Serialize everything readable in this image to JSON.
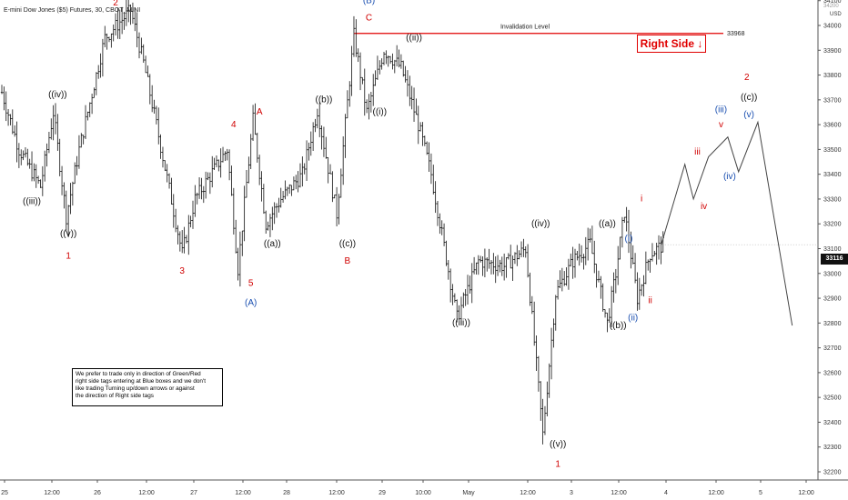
{
  "header": {
    "title": "E-mini Dow Jones ($5) Futures, 30, CBOT_MINI"
  },
  "currency": "USD",
  "current_price": "33116",
  "right_side_box": {
    "label": "Right Side",
    "arrow": "down-arrow",
    "color": "#e00000"
  },
  "note_lines": [
    "We prefer to trade only in direction of Green/Red",
    "right side tags entering at Blue boxes and we don't",
    "like trading Turning up/down arrows or against",
    "the direction of Right side tags"
  ],
  "chart_data": {
    "type": "ohlc-bars",
    "y_ticks": [
      32200,
      32300,
      32400,
      32500,
      32600,
      32700,
      32800,
      32900,
      33000,
      33100,
      33200,
      33300,
      33400,
      33500,
      33600,
      33700,
      33800,
      33900,
      34000,
      34100
    ],
    "y_top_tick": "34200",
    "x_tick_labels": [
      "25",
      "12:00",
      "26",
      "12:00",
      "27",
      "12:00",
      "28",
      "12:00",
      "29",
      "10:00",
      "May",
      "12:00",
      "3",
      "12:00",
      "4",
      "12:00",
      "5",
      "12:00"
    ],
    "invalidation": {
      "label": "Invalidation Level",
      "value": 33968
    },
    "price_path_key_points": [
      {
        "t": 0,
        "v": 33730
      },
      {
        "t": 8,
        "v": 33500
      },
      {
        "t": 18,
        "v": 33350
      },
      {
        "t": 24,
        "v": 33650
      },
      {
        "t": 30,
        "v": 33230
      },
      {
        "t": 36,
        "v": 33500
      },
      {
        "t": 48,
        "v": 33950
      },
      {
        "t": 60,
        "v": 34060
      },
      {
        "t": 66,
        "v": 33850
      },
      {
        "t": 72,
        "v": 33600
      },
      {
        "t": 84,
        "v": 33080
      },
      {
        "t": 90,
        "v": 33300
      },
      {
        "t": 96,
        "v": 33380
      },
      {
        "t": 105,
        "v": 33500
      },
      {
        "t": 110,
        "v": 33020
      },
      {
        "t": 117,
        "v": 33620
      },
      {
        "t": 123,
        "v": 33200
      },
      {
        "t": 130,
        "v": 33300
      },
      {
        "t": 140,
        "v": 33400
      },
      {
        "t": 147,
        "v": 33660
      },
      {
        "t": 156,
        "v": 33240
      },
      {
        "t": 164,
        "v": 33960
      },
      {
        "t": 170,
        "v": 33650
      },
      {
        "t": 178,
        "v": 33900
      },
      {
        "t": 186,
        "v": 33830
      },
      {
        "t": 194,
        "v": 33600
      },
      {
        "t": 200,
        "v": 33400
      },
      {
        "t": 212,
        "v": 32820
      },
      {
        "t": 222,
        "v": 33050
      },
      {
        "t": 234,
        "v": 33030
      },
      {
        "t": 244,
        "v": 33100
      },
      {
        "t": 252,
        "v": 32350
      },
      {
        "t": 258,
        "v": 32920
      },
      {
        "t": 266,
        "v": 33050
      },
      {
        "t": 274,
        "v": 33120
      },
      {
        "t": 282,
        "v": 32800
      },
      {
        "t": 286,
        "v": 33000
      },
      {
        "t": 290,
        "v": 33250
      },
      {
        "t": 296,
        "v": 32900
      },
      {
        "t": 302,
        "v": 33080
      },
      {
        "t": 308,
        "v": 33116
      }
    ],
    "projection": [
      {
        "t": 308,
        "v": 33116
      },
      {
        "t": 319,
        "v": 33440
      },
      {
        "t": 323,
        "v": 33300
      },
      {
        "t": 330,
        "v": 33470
      },
      {
        "t": 339,
        "v": 33550
      },
      {
        "t": 344,
        "v": 33410
      },
      {
        "t": 353,
        "v": 33610
      },
      {
        "t": 369,
        "v": 32790
      }
    ],
    "wave_labels": [
      {
        "text": "2",
        "t": 53,
        "v": 34080,
        "color": "#d00000"
      },
      {
        "text": "((iv))",
        "t": 26,
        "v": 33710,
        "color": "#111"
      },
      {
        "text": "((iii))",
        "t": 14,
        "v": 33280,
        "color": "#111"
      },
      {
        "text": "((v))",
        "t": 31,
        "v": 33150,
        "color": "#111"
      },
      {
        "text": "1",
        "t": 31,
        "v": 33060,
        "color": "#d00000"
      },
      {
        "text": "3",
        "t": 84,
        "v": 33000,
        "color": "#d00000"
      },
      {
        "text": "4",
        "t": 108,
        "v": 33590,
        "color": "#d00000"
      },
      {
        "text": "A",
        "t": 120,
        "v": 33640,
        "color": "#d00000"
      },
      {
        "text": "5",
        "t": 116,
        "v": 32950,
        "color": "#d00000"
      },
      {
        "text": "(A)",
        "t": 116,
        "v": 32870,
        "color": "#1a4fb0"
      },
      {
        "text": "((a))",
        "t": 126,
        "v": 33110,
        "color": "#111"
      },
      {
        "text": "((b))",
        "t": 150,
        "v": 33690,
        "color": "#111"
      },
      {
        "text": "((c))",
        "t": 161,
        "v": 33110,
        "color": "#111"
      },
      {
        "text": "B",
        "t": 161,
        "v": 33040,
        "color": "#d00000"
      },
      {
        "text": "(B)",
        "t": 171,
        "v": 34090,
        "color": "#1a4fb0"
      },
      {
        "text": "C",
        "t": 171,
        "v": 34020,
        "color": "#d00000"
      },
      {
        "text": "((ii))",
        "t": 192,
        "v": 33940,
        "color": "#111"
      },
      {
        "text": "((i))",
        "t": 176,
        "v": 33640,
        "color": "#111"
      },
      {
        "text": "((iii))",
        "t": 214,
        "v": 32790,
        "color": "#111"
      },
      {
        "text": "((iv))",
        "t": 251,
        "v": 33190,
        "color": "#111"
      },
      {
        "text": "((v))",
        "t": 259,
        "v": 32300,
        "color": "#111"
      },
      {
        "text": "1",
        "t": 259,
        "v": 32220,
        "color": "#d00000"
      },
      {
        "text": "((a))",
        "t": 282,
        "v": 33190,
        "color": "#111"
      },
      {
        "text": "(i)",
        "t": 292,
        "v": 33130,
        "color": "#1a4fb0"
      },
      {
        "text": "((b))",
        "t": 287,
        "v": 32780,
        "color": "#111"
      },
      {
        "text": "(ii)",
        "t": 294,
        "v": 32810,
        "color": "#1a4fb0"
      },
      {
        "text": "i",
        "t": 298,
        "v": 33290,
        "color": "#d00000"
      },
      {
        "text": "ii",
        "t": 302,
        "v": 32880,
        "color": "#d00000"
      },
      {
        "text": "iii",
        "t": 324,
        "v": 33480,
        "color": "#d00000"
      },
      {
        "text": "iv",
        "t": 327,
        "v": 33260,
        "color": "#d00000"
      },
      {
        "text": "v",
        "t": 335,
        "v": 33590,
        "color": "#d00000"
      },
      {
        "text": "(iii)",
        "t": 335,
        "v": 33650,
        "color": "#1a4fb0"
      },
      {
        "text": "(iv)",
        "t": 339,
        "v": 33380,
        "color": "#1a4fb0"
      },
      {
        "text": "2",
        "t": 347,
        "v": 33780,
        "color": "#d00000"
      },
      {
        "text": "((c))",
        "t": 348,
        "v": 33700,
        "color": "#111"
      },
      {
        "text": "(v)",
        "t": 348,
        "v": 33630,
        "color": "#1a4fb0"
      }
    ]
  }
}
